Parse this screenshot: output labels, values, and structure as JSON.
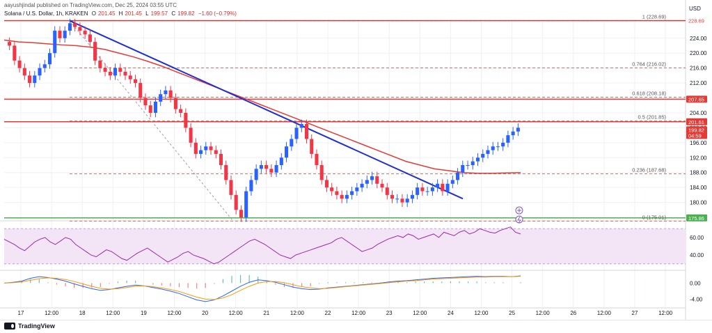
{
  "header": {
    "published_by": "aayushjindal published on TradingView.com, Dec 25, 2024 03:55 UTC",
    "symbol": "Solana / U.S. Dollar, 1h, KRAKEN",
    "o_label": "O",
    "o": "201.45",
    "h_label": "H",
    "h": "201.45",
    "l_label": "L",
    "l": "199.57",
    "c_label": "C",
    "c": "199.82",
    "change": "−1.60 (−0.79%)"
  },
  "currency": "USD",
  "footer": {
    "brand": "TradingView"
  },
  "colors": {
    "up": "#2962ff",
    "down": "#f23645",
    "ma": "#e53935",
    "trendline": "#1f2fd1",
    "hline": "#e53935",
    "fib": "#c0392b",
    "support": "#4caf50",
    "rsi_line": "#9c27b0",
    "rsi_band": "#f3e5f5",
    "macd": "#2962ff",
    "signal": "#ff9800"
  },
  "chart_data": [
    {
      "type": "candlestick",
      "title": "Solana / U.S. Dollar, 1h, KRAKEN",
      "x_ticks": [
        "17",
        "12:00",
        "18",
        "12:00",
        "19",
        "12:00",
        "20",
        "12:00",
        "21",
        "12:00",
        "22",
        "12:00",
        "23",
        "12:00",
        "24",
        "12:00",
        "25",
        "12:00",
        "26",
        "12:00",
        "27",
        "12:00"
      ],
      "y_ticks": [
        180.0,
        184.0,
        188.0,
        192.0,
        196.0,
        200.0,
        204.0,
        208.0,
        212.0,
        216.0,
        220.0,
        224.0
      ],
      "ylim": [
        176,
        229
      ],
      "close": [
        222,
        218,
        216,
        214,
        212,
        214,
        216,
        217,
        220,
        226,
        224,
        226,
        228,
        227,
        226,
        225,
        223,
        218,
        216,
        215,
        214,
        216,
        215,
        214,
        213,
        212,
        208,
        206,
        204,
        207,
        209,
        210,
        208,
        205,
        204,
        200,
        196,
        193,
        194,
        195,
        194,
        193,
        190,
        186,
        182,
        178,
        176,
        183,
        186,
        189,
        190,
        189,
        188,
        190,
        192,
        195,
        197,
        200,
        201,
        197,
        193,
        190,
        186,
        184,
        183,
        182,
        181,
        182,
        183,
        184,
        185,
        186,
        187,
        185,
        184,
        182,
        181,
        181,
        180,
        181,
        182,
        184,
        183,
        183,
        184,
        185,
        183,
        185,
        186,
        188,
        190,
        190,
        191,
        192,
        193,
        194,
        195,
        195,
        196,
        198,
        199,
        200
      ],
      "price_labels": [
        {
          "text": "228.69",
          "kind": "top"
        },
        {
          "text": "207.65",
          "kind": "level"
        },
        {
          "text": "201.61",
          "kind": "level"
        },
        {
          "text": "199.82",
          "kind": "last"
        },
        {
          "text": "04:59",
          "kind": "last"
        },
        {
          "text": "175.86",
          "kind": "support"
        }
      ],
      "moving_average": [
        223.5,
        223,
        222.8,
        222.5,
        222.2,
        222,
        221.6,
        221,
        220,
        219,
        217.8,
        216.5,
        215,
        213.5,
        212,
        210.5,
        209,
        207.5,
        206,
        204.5,
        203,
        201.5,
        200,
        198.5,
        197,
        195.5,
        194,
        192.5,
        191,
        190,
        189,
        188.5,
        188,
        187.8,
        187.8,
        187.9,
        188
      ],
      "fib_levels": [
        {
          "label": "1 (228.69)",
          "value": 228.69
        },
        {
          "label": "0.764 (216.02)",
          "value": 216.02
        },
        {
          "label": "0.618 (208.18)",
          "value": 208.18
        },
        {
          "label": "0.5 (201.85)",
          "value": 201.85
        },
        {
          "label": "0.236 (187.68)",
          "value": 187.68
        },
        {
          "label": "0 (175.01)",
          "value": 175.01
        }
      ],
      "horizontal_lines": [
        228.69,
        207.65,
        201.61
      ],
      "support_line": 175.86,
      "trendline": {
        "start": 228.69,
        "end": 181.0
      }
    },
    {
      "type": "line",
      "name": "RSI",
      "y_ticks": [
        40.0,
        60.0
      ],
      "ylim": [
        25,
        75
      ],
      "band": [
        30,
        70
      ],
      "values": [
        58,
        55,
        52,
        48,
        45,
        50,
        55,
        58,
        60,
        55,
        52,
        56,
        60,
        58,
        52,
        48,
        44,
        40,
        38,
        42,
        46,
        44,
        40,
        36,
        34,
        38,
        42,
        45,
        48,
        44,
        40,
        36,
        32,
        35,
        38,
        42,
        44,
        40,
        38,
        36,
        33,
        30,
        32,
        36,
        40,
        44,
        48,
        52,
        56,
        58,
        55,
        52,
        48,
        44,
        40,
        38,
        36,
        40,
        42,
        44,
        46,
        48,
        50,
        52,
        54,
        58,
        60,
        56,
        52,
        48,
        44,
        46,
        48,
        52,
        55,
        58,
        60,
        62,
        60,
        64,
        62,
        58,
        60,
        62,
        64,
        60,
        66,
        64,
        62,
        66,
        68,
        64,
        66,
        70,
        68,
        66,
        65,
        68,
        70,
        72,
        66,
        64
      ]
    },
    {
      "type": "line",
      "name": "MACD",
      "y_ticks": [
        -4.0,
        0.0
      ],
      "ylim": [
        -5.5,
        2.5
      ],
      "macd": [
        0,
        0.2,
        0.5,
        1.2,
        1.6,
        1.4,
        1,
        0.5,
        -0.2,
        -0.8,
        -1.4,
        -1.8,
        -1.6,
        -1.2,
        -0.8,
        -0.5,
        -0.7,
        -1.1,
        -1.5,
        -2,
        -2.6,
        -3.4,
        -4.2,
        -4.6,
        -4.2,
        -3.2,
        -2,
        -0.8,
        0.2,
        0.8,
        0.6,
        0.2,
        -0.4,
        -1,
        -1.4,
        -1.6,
        -1.5,
        -1.2,
        -1,
        -0.8,
        -0.6,
        -0.4,
        -0.2,
        0,
        0.3,
        0.5,
        0.6,
        0.8,
        1,
        1.2,
        1.3,
        1.4,
        1.5,
        1.6,
        1.7,
        1.6,
        1.7,
        1.7,
        1.6,
        1.8
      ],
      "signal": [
        0,
        0.1,
        0.3,
        0.7,
        1.1,
        1.3,
        1.2,
        0.9,
        0.4,
        -0.2,
        -0.8,
        -1.3,
        -1.5,
        -1.4,
        -1.1,
        -0.8,
        -0.7,
        -0.9,
        -1.2,
        -1.6,
        -2.1,
        -2.8,
        -3.5,
        -4,
        -4.1,
        -3.7,
        -2.9,
        -1.8,
        -0.8,
        0,
        0.4,
        0.4,
        0.1,
        -0.4,
        -0.9,
        -1.2,
        -1.4,
        -1.3,
        -1.1,
        -0.9,
        -0.7,
        -0.5,
        -0.3,
        -0.1,
        0.1,
        0.3,
        0.5,
        0.6,
        0.8,
        1,
        1.1,
        1.2,
        1.3,
        1.4,
        1.5,
        1.5,
        1.6,
        1.6,
        1.6,
        1.7
      ]
    }
  ]
}
